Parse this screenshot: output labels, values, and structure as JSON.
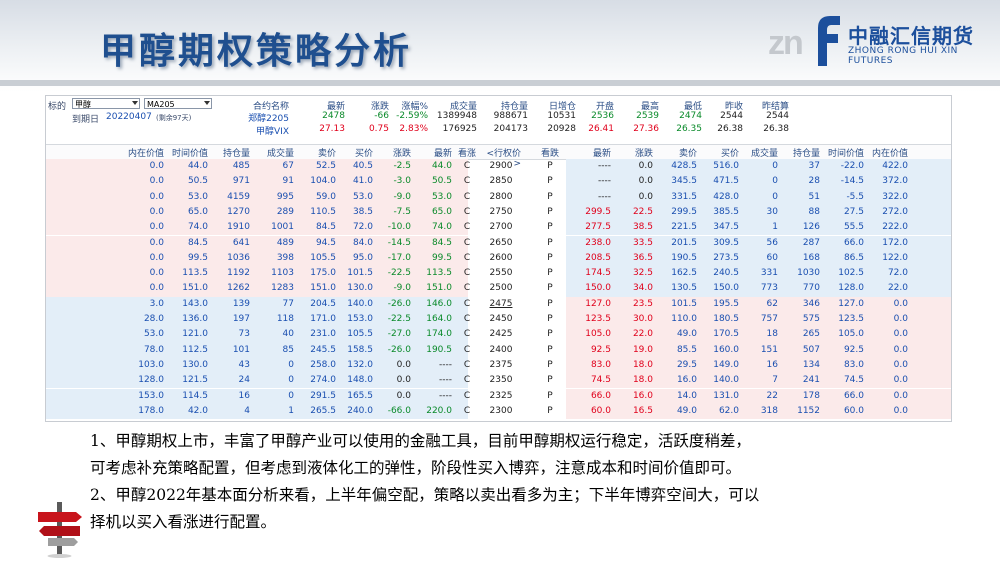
{
  "slide": {
    "title": "甲醇期权策略分析",
    "logo_cn": "中融汇信期货",
    "logo_en": "ZHONG RONG HUI XIN FUTURES",
    "logo_mark": "zn",
    "notes": [
      "1、甲醇期权上市，丰富了甲醇产业可以使用的金融工具，目前甲醇期权运行稳定，活跃度稍差，",
      "可考虑补充策略配置，但考虑到液体化工的弹性，阶段性买入博弈，注意成本和时间价值即可。",
      "2、甲醇2022年基本面分析来看，上半年偏空配，策略以卖出看多为主；下半年博弈空间大，可以",
      "择机以买入看涨进行配置。"
    ]
  },
  "quote_panel": {
    "underlying_label": "标的",
    "underlying_value": "甲醇",
    "contract_value": "MA205",
    "expiry_label": "到期日",
    "expiry_value": "20220407",
    "days_left": "(剩余97天)",
    "headers": [
      "合约名称",
      "最新",
      "涨跌",
      "涨幅%",
      "成交量",
      "持仓量",
      "日增仓",
      "开盘",
      "最高",
      "最低",
      "昨收",
      "昨结算"
    ],
    "rows": [
      [
        "郑醇2205",
        "2478",
        "-66",
        "-2.59%",
        "1389948",
        "988671",
        "10531",
        "2536",
        "2539",
        "2474",
        "2544",
        "2544"
      ],
      [
        "甲醇VIX",
        "27.13",
        "0.75",
        "2.83%",
        "176925",
        "204173",
        "20928",
        "26.41",
        "27.36",
        "26.35",
        "26.38",
        "26.38"
      ]
    ]
  },
  "option_table": {
    "headers": [
      "内在价值",
      "时间价值",
      "持仓量",
      "成交量",
      "卖价",
      "买价",
      "涨跌",
      "最新",
      "看涨",
      "<行权价>",
      "看跌",
      "最新",
      "涨跌",
      "卖价",
      "买价",
      "成交量",
      "持仓量",
      "时间价值",
      "内在价值"
    ],
    "rows": [
      [
        "0.0",
        "44.0",
        "485",
        "67",
        "52.5",
        "40.5",
        "-2.5",
        "44.0",
        "C",
        "2900",
        "P",
        "----",
        "0.0",
        "428.5",
        "516.0",
        "0",
        "37",
        "-22.0",
        "422.0"
      ],
      [
        "0.0",
        "50.5",
        "971",
        "91",
        "104.0",
        "41.0",
        "-3.0",
        "50.5",
        "C",
        "2850",
        "P",
        "----",
        "0.0",
        "345.5",
        "471.5",
        "0",
        "28",
        "-14.5",
        "372.0"
      ],
      [
        "0.0",
        "53.0",
        "4159",
        "995",
        "59.0",
        "53.0",
        "-9.0",
        "53.0",
        "C",
        "2800",
        "P",
        "----",
        "0.0",
        "331.5",
        "428.0",
        "0",
        "51",
        "-5.5",
        "322.0"
      ],
      [
        "0.0",
        "65.0",
        "1270",
        "289",
        "110.5",
        "38.5",
        "-7.5",
        "65.0",
        "C",
        "2750",
        "P",
        "299.5",
        "22.5",
        "299.5",
        "385.5",
        "30",
        "88",
        "27.5",
        "272.0"
      ],
      [
        "0.0",
        "74.0",
        "1910",
        "1001",
        "84.5",
        "72.0",
        "-10.0",
        "74.0",
        "C",
        "2700",
        "P",
        "277.5",
        "38.5",
        "221.5",
        "347.5",
        "1",
        "126",
        "55.5",
        "222.0"
      ],
      [
        "0.0",
        "84.5",
        "641",
        "489",
        "94.5",
        "84.0",
        "-14.5",
        "84.5",
        "C",
        "2650",
        "P",
        "238.0",
        "33.5",
        "201.5",
        "309.5",
        "56",
        "287",
        "66.0",
        "172.0"
      ],
      [
        "0.0",
        "99.5",
        "1036",
        "398",
        "105.5",
        "95.0",
        "-17.0",
        "99.5",
        "C",
        "2600",
        "P",
        "208.5",
        "36.5",
        "190.5",
        "273.5",
        "60",
        "168",
        "86.5",
        "122.0"
      ],
      [
        "0.0",
        "113.5",
        "1192",
        "1103",
        "175.0",
        "101.5",
        "-22.5",
        "113.5",
        "C",
        "2550",
        "P",
        "174.5",
        "32.5",
        "162.5",
        "240.5",
        "331",
        "1030",
        "102.5",
        "72.0"
      ],
      [
        "0.0",
        "151.0",
        "1262",
        "1283",
        "151.0",
        "130.0",
        "-9.0",
        "151.0",
        "C",
        "2500",
        "P",
        "150.0",
        "34.0",
        "130.5",
        "150.0",
        "773",
        "770",
        "128.0",
        "22.0"
      ],
      [
        "3.0",
        "143.0",
        "139",
        "77",
        "204.5",
        "140.0",
        "-26.0",
        "146.0",
        "C",
        "2475",
        "P",
        "127.0",
        "23.5",
        "101.5",
        "195.5",
        "62",
        "346",
        "127.0",
        "0.0"
      ],
      [
        "28.0",
        "136.0",
        "197",
        "118",
        "171.0",
        "153.0",
        "-22.5",
        "164.0",
        "C",
        "2450",
        "P",
        "123.5",
        "30.0",
        "110.0",
        "180.5",
        "757",
        "575",
        "123.5",
        "0.0"
      ],
      [
        "53.0",
        "121.0",
        "73",
        "40",
        "231.0",
        "105.5",
        "-27.0",
        "174.0",
        "C",
        "2425",
        "P",
        "105.0",
        "22.0",
        "49.0",
        "170.5",
        "18",
        "265",
        "105.0",
        "0.0"
      ],
      [
        "78.0",
        "112.5",
        "101",
        "85",
        "245.5",
        "158.5",
        "-26.0",
        "190.5",
        "C",
        "2400",
        "P",
        "92.5",
        "19.0",
        "85.5",
        "160.0",
        "151",
        "507",
        "92.5",
        "0.0"
      ],
      [
        "103.0",
        "130.0",
        "43",
        "0",
        "258.0",
        "132.0",
        "0.0",
        "----",
        "C",
        "2375",
        "P",
        "83.0",
        "18.0",
        "29.5",
        "149.0",
        "16",
        "134",
        "83.0",
        "0.0"
      ],
      [
        "128.0",
        "121.5",
        "24",
        "0",
        "274.0",
        "148.0",
        "0.0",
        "----",
        "C",
        "2350",
        "P",
        "74.5",
        "18.0",
        "16.0",
        "140.0",
        "7",
        "241",
        "74.5",
        "0.0"
      ],
      [
        "153.0",
        "114.5",
        "16",
        "0",
        "291.5",
        "165.5",
        "0.0",
        "----",
        "C",
        "2325",
        "P",
        "66.0",
        "16.0",
        "14.0",
        "131.0",
        "22",
        "178",
        "66.0",
        "0.0"
      ],
      [
        "178.0",
        "42.0",
        "4",
        "1",
        "265.5",
        "240.0",
        "-66.0",
        "220.0",
        "C",
        "2300",
        "P",
        "60.0",
        "16.5",
        "49.0",
        "62.0",
        "318",
        "1152",
        "60.0",
        "0.0"
      ]
    ]
  },
  "colors": {
    "title": "#1f4f8f",
    "up": "#e0001b",
    "down": "#0a8a2a",
    "num": "#1a4fb0",
    "otm_bg": "#fbeaea",
    "itm_bg": "#e3eef8"
  }
}
